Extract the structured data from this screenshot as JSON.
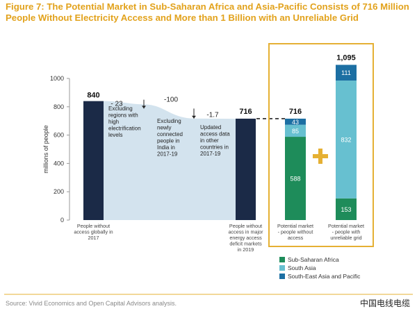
{
  "header": {
    "title_line1": "Figure 7: The Potential Market in Sub-Saharan Africa and Asia-Pacific Consists of 716 Million",
    "title_line2": "People Without Electricity Access and More than 1 Billion with an Unreliable Grid"
  },
  "footer": {
    "source": "Source: Vivid Economics and Open Capital Advisors analysis.",
    "watermark": "中国电线电缆"
  },
  "colors": {
    "dark_bar": "#1b2a47",
    "waterfall_fill": "#d3e3ee",
    "sub_saharan_africa": "#1e8c5a",
    "south_asia": "#67c0d0",
    "south_east_asia_pacific": "#1c6fa3",
    "highlight_frame": "#e5b033",
    "plus_sign": "#e5b033"
  },
  "chart_data": {
    "type": "bar",
    "subtype": "waterfall-and-stacked",
    "ylabel": "millions of people",
    "ylim": [
      0,
      1000
    ],
    "yticks": [
      0,
      200,
      400,
      600,
      800,
      1000
    ],
    "grid": false,
    "legend_position": "bottom-right",
    "waterfall": {
      "start": {
        "label": "People without access globally in 2017",
        "value": 840,
        "value_label": "840"
      },
      "steps": [
        {
          "change": -23,
          "change_label": "- 23",
          "description": "Excluding regions with high electrification levels"
        },
        {
          "change": -100,
          "change_label": "-100",
          "description": "Excluding newly connected people in India in 2017-19"
        },
        {
          "change": -1.7,
          "change_label": "-1.7",
          "description": "Updated access data in other countries in 2017-19"
        }
      ],
      "end": {
        "label": "People without access in major energy access deficit markets in 2019",
        "value": 716,
        "value_label": "716"
      }
    },
    "stacked": {
      "categories": [
        "Potential market - people without access",
        "Potential market - people with unreliable grid"
      ],
      "totals": [
        "716",
        "1,095"
      ],
      "series": [
        {
          "name": "Sub-Saharan Africa",
          "values": [
            588,
            153
          ],
          "value_labels": [
            "588",
            "153"
          ]
        },
        {
          "name": "South Asia",
          "values": [
            85,
            832
          ],
          "value_labels": [
            "85",
            "832"
          ]
        },
        {
          "name": "South-East Asia and Pacific",
          "values": [
            43,
            111
          ],
          "value_labels": [
            "43",
            "111"
          ]
        }
      ]
    }
  }
}
